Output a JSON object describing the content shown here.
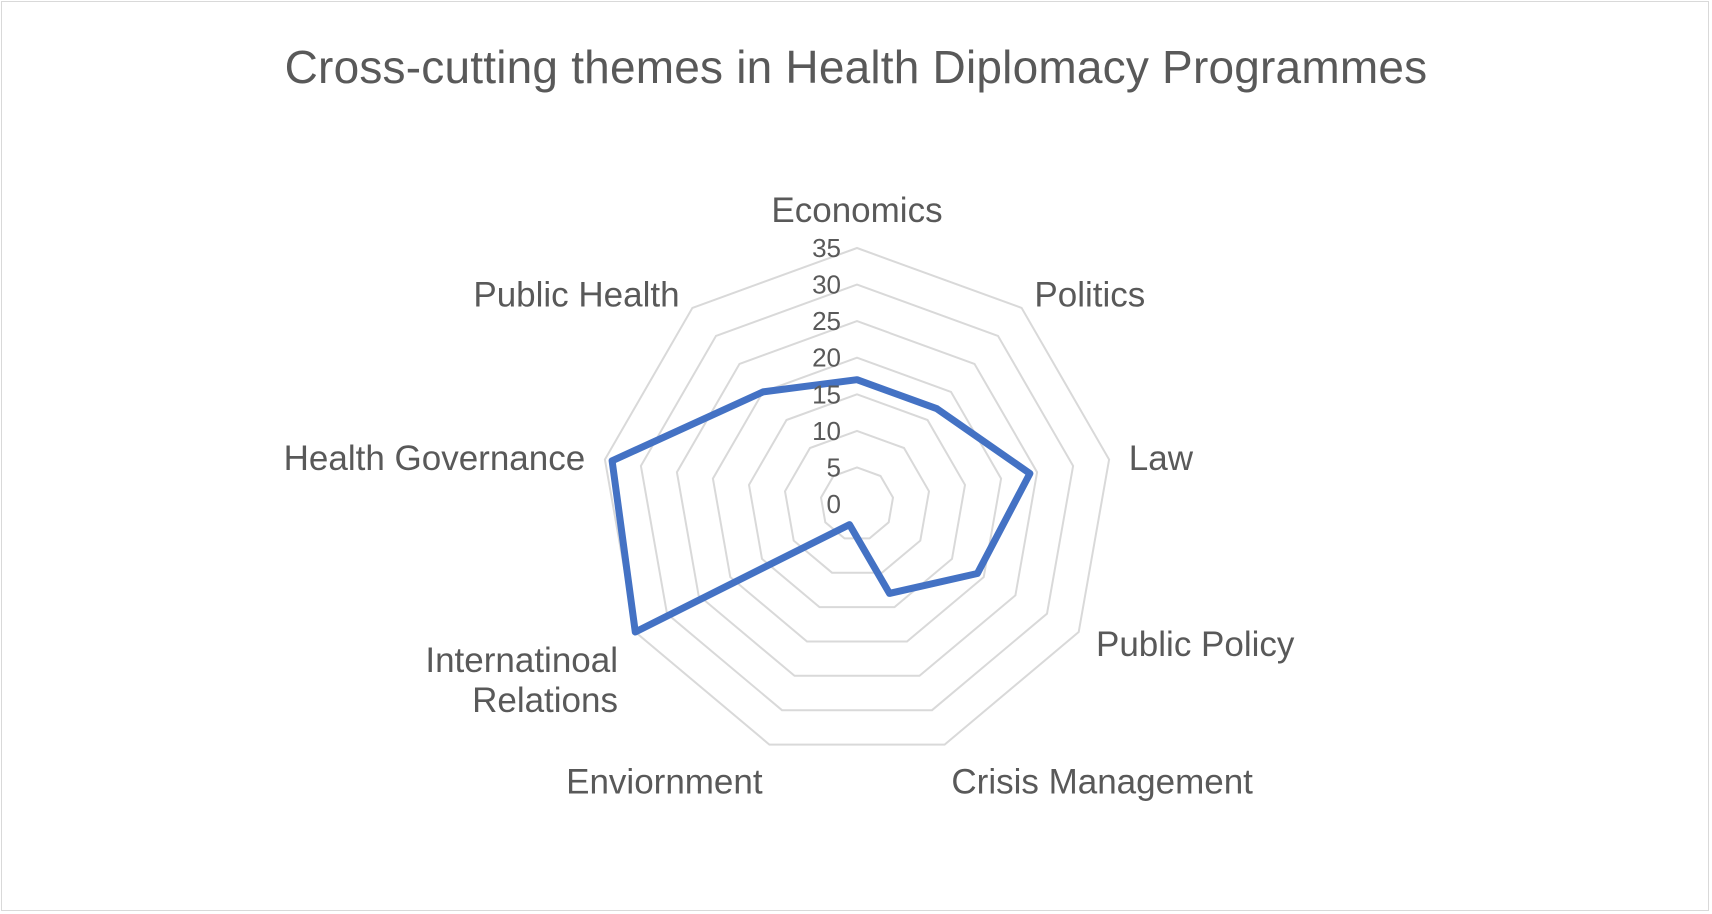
{
  "chart_data": {
    "type": "radar",
    "title": "Cross-cutting themes in Health Diplomacy Programmes",
    "categories": [
      "Economics",
      "Politics",
      "Law",
      "Public Policy",
      "Crisis Management",
      "Enviornment",
      "Internatinoal Relations",
      "Health Governance",
      "Public Health"
    ],
    "label_lines": [
      [
        "Economics"
      ],
      [
        "Politics"
      ],
      [
        "Law"
      ],
      [
        "Public Policy"
      ],
      [
        "Crisis Management"
      ],
      [
        "Enviornment"
      ],
      [
        "Internatinoal",
        "Relations"
      ],
      [
        "Health Governance"
      ],
      [
        "Public Health"
      ]
    ],
    "ticks": [
      0,
      5,
      10,
      15,
      20,
      25,
      30,
      35
    ],
    "rlim": [
      0,
      35
    ],
    "grid": true,
    "legend": "none",
    "series": [
      {
        "values": [
          17,
          17,
          24,
          19,
          13,
          3,
          35,
          34,
          20
        ],
        "color": "#4472c4"
      }
    ]
  }
}
